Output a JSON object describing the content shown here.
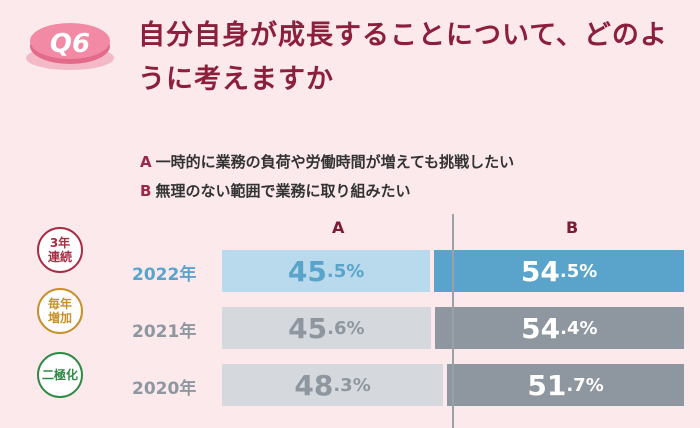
{
  "question": {
    "badge": "Q6",
    "title": "自分自身が成長することについて、どのように考えますか"
  },
  "legend": [
    {
      "key": "A",
      "text": "一時的に業務の負荷や労働時間が増えても挑戦したい"
    },
    {
      "key": "B",
      "text": "無理のない範囲で業務に取り組みたい"
    }
  ],
  "badges": [
    {
      "line1": "3年",
      "line2": "連続",
      "color": "#a92c42"
    },
    {
      "line1": "毎年",
      "line2": "増加",
      "color": "#c8902a"
    },
    {
      "line1": "二極化",
      "line2": "",
      "color": "#2e8a45"
    }
  ],
  "chart_data": {
    "type": "bar",
    "stacked": true,
    "orientation": "horizontal",
    "categories": [
      "2022年",
      "2021年",
      "2020年"
    ],
    "series": [
      {
        "name": "A",
        "values": [
          45.5,
          45.6,
          48.3
        ]
      },
      {
        "name": "B",
        "values": [
          54.5,
          54.4,
          51.7
        ]
      }
    ],
    "value_unit": "%",
    "xlim": [
      0,
      100
    ],
    "colors": {
      "highlight_A": "#b9d9ec",
      "highlight_B": "#5aa4cc",
      "A": "#d5d9dd",
      "B": "#8e979f",
      "highlight_year": "#5aa4cc",
      "year": "#8e979f"
    }
  }
}
